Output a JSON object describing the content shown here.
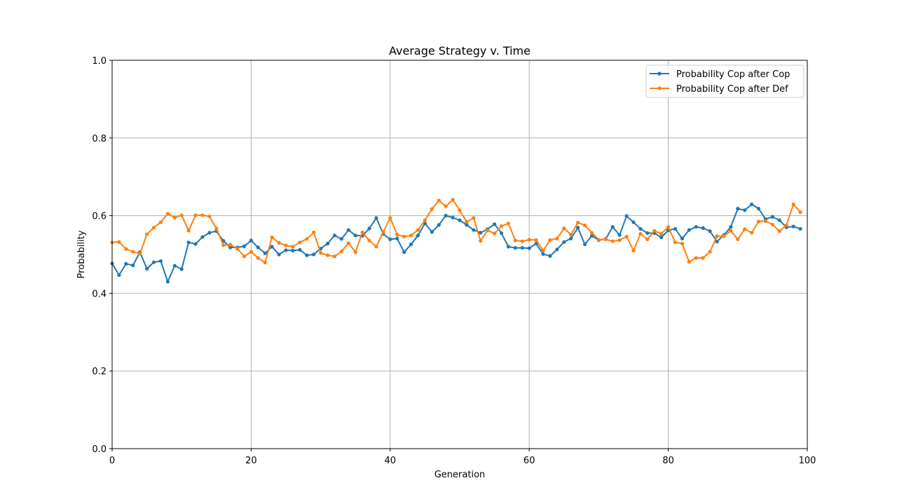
{
  "chart_data": {
    "type": "line",
    "title": "Average Strategy v. Time",
    "xlabel": "Generation",
    "ylabel": "Probability",
    "xlim": [
      0,
      100
    ],
    "ylim": [
      0,
      1
    ],
    "xticks": [
      0,
      20,
      40,
      60,
      80,
      100
    ],
    "xtick_labels": [
      "0",
      "20",
      "40",
      "60",
      "80",
      "100"
    ],
    "yticks": [
      0.0,
      0.2,
      0.4,
      0.6,
      0.8,
      1.0
    ],
    "ytick_labels": [
      "0.0",
      "0.2",
      "0.4",
      "0.6",
      "0.8",
      "1.0"
    ],
    "grid": true,
    "legend_position": "top-right",
    "series": [
      {
        "name": "Probability Cop after Cop",
        "color": "#1f77b4",
        "values": [
          0.477,
          0.447,
          0.476,
          0.472,
          0.506,
          0.463,
          0.48,
          0.483,
          0.43,
          0.471,
          0.462,
          0.531,
          0.527,
          0.545,
          0.556,
          0.56,
          0.535,
          0.518,
          0.518,
          0.521,
          0.536,
          0.518,
          0.503,
          0.52,
          0.5,
          0.511,
          0.51,
          0.512,
          0.498,
          0.5,
          0.515,
          0.528,
          0.549,
          0.54,
          0.563,
          0.549,
          0.548,
          0.567,
          0.594,
          0.553,
          0.539,
          0.541,
          0.506,
          0.526,
          0.549,
          0.58,
          0.558,
          0.576,
          0.6,
          0.595,
          0.588,
          0.576,
          0.563,
          0.556,
          0.565,
          0.578,
          0.555,
          0.52,
          0.517,
          0.517,
          0.516,
          0.528,
          0.501,
          0.496,
          0.513,
          0.532,
          0.541,
          0.569,
          0.526,
          0.548,
          0.537,
          0.54,
          0.571,
          0.55,
          0.599,
          0.583,
          0.566,
          0.555,
          0.555,
          0.544,
          0.562,
          0.566,
          0.541,
          0.563,
          0.571,
          0.568,
          0.56,
          0.533,
          0.55,
          0.571,
          0.618,
          0.614,
          0.629,
          0.618,
          0.591,
          0.597,
          0.588,
          0.57,
          0.572,
          0.566
        ]
      },
      {
        "name": "Probability Cop after Def",
        "color": "#ff7f0e",
        "values": [
          0.531,
          0.532,
          0.514,
          0.507,
          0.502,
          0.552,
          0.569,
          0.583,
          0.605,
          0.595,
          0.601,
          0.561,
          0.601,
          0.601,
          0.598,
          0.567,
          0.524,
          0.525,
          0.515,
          0.495,
          0.507,
          0.491,
          0.479,
          0.544,
          0.53,
          0.523,
          0.52,
          0.531,
          0.54,
          0.557,
          0.504,
          0.498,
          0.495,
          0.508,
          0.529,
          0.506,
          0.557,
          0.536,
          0.52,
          0.558,
          0.594,
          0.551,
          0.546,
          0.549,
          0.563,
          0.588,
          0.617,
          0.639,
          0.624,
          0.641,
          0.614,
          0.584,
          0.594,
          0.535,
          0.562,
          0.554,
          0.573,
          0.58,
          0.536,
          0.534,
          0.538,
          0.537,
          0.51,
          0.537,
          0.541,
          0.567,
          0.551,
          0.582,
          0.575,
          0.556,
          0.538,
          0.539,
          0.534,
          0.537,
          0.546,
          0.51,
          0.553,
          0.539,
          0.561,
          0.553,
          0.571,
          0.531,
          0.528,
          0.481,
          0.491,
          0.491,
          0.507,
          0.547,
          0.547,
          0.561,
          0.539,
          0.565,
          0.556,
          0.585,
          0.586,
          0.577,
          0.56,
          0.575,
          0.629,
          0.609
        ]
      }
    ]
  }
}
